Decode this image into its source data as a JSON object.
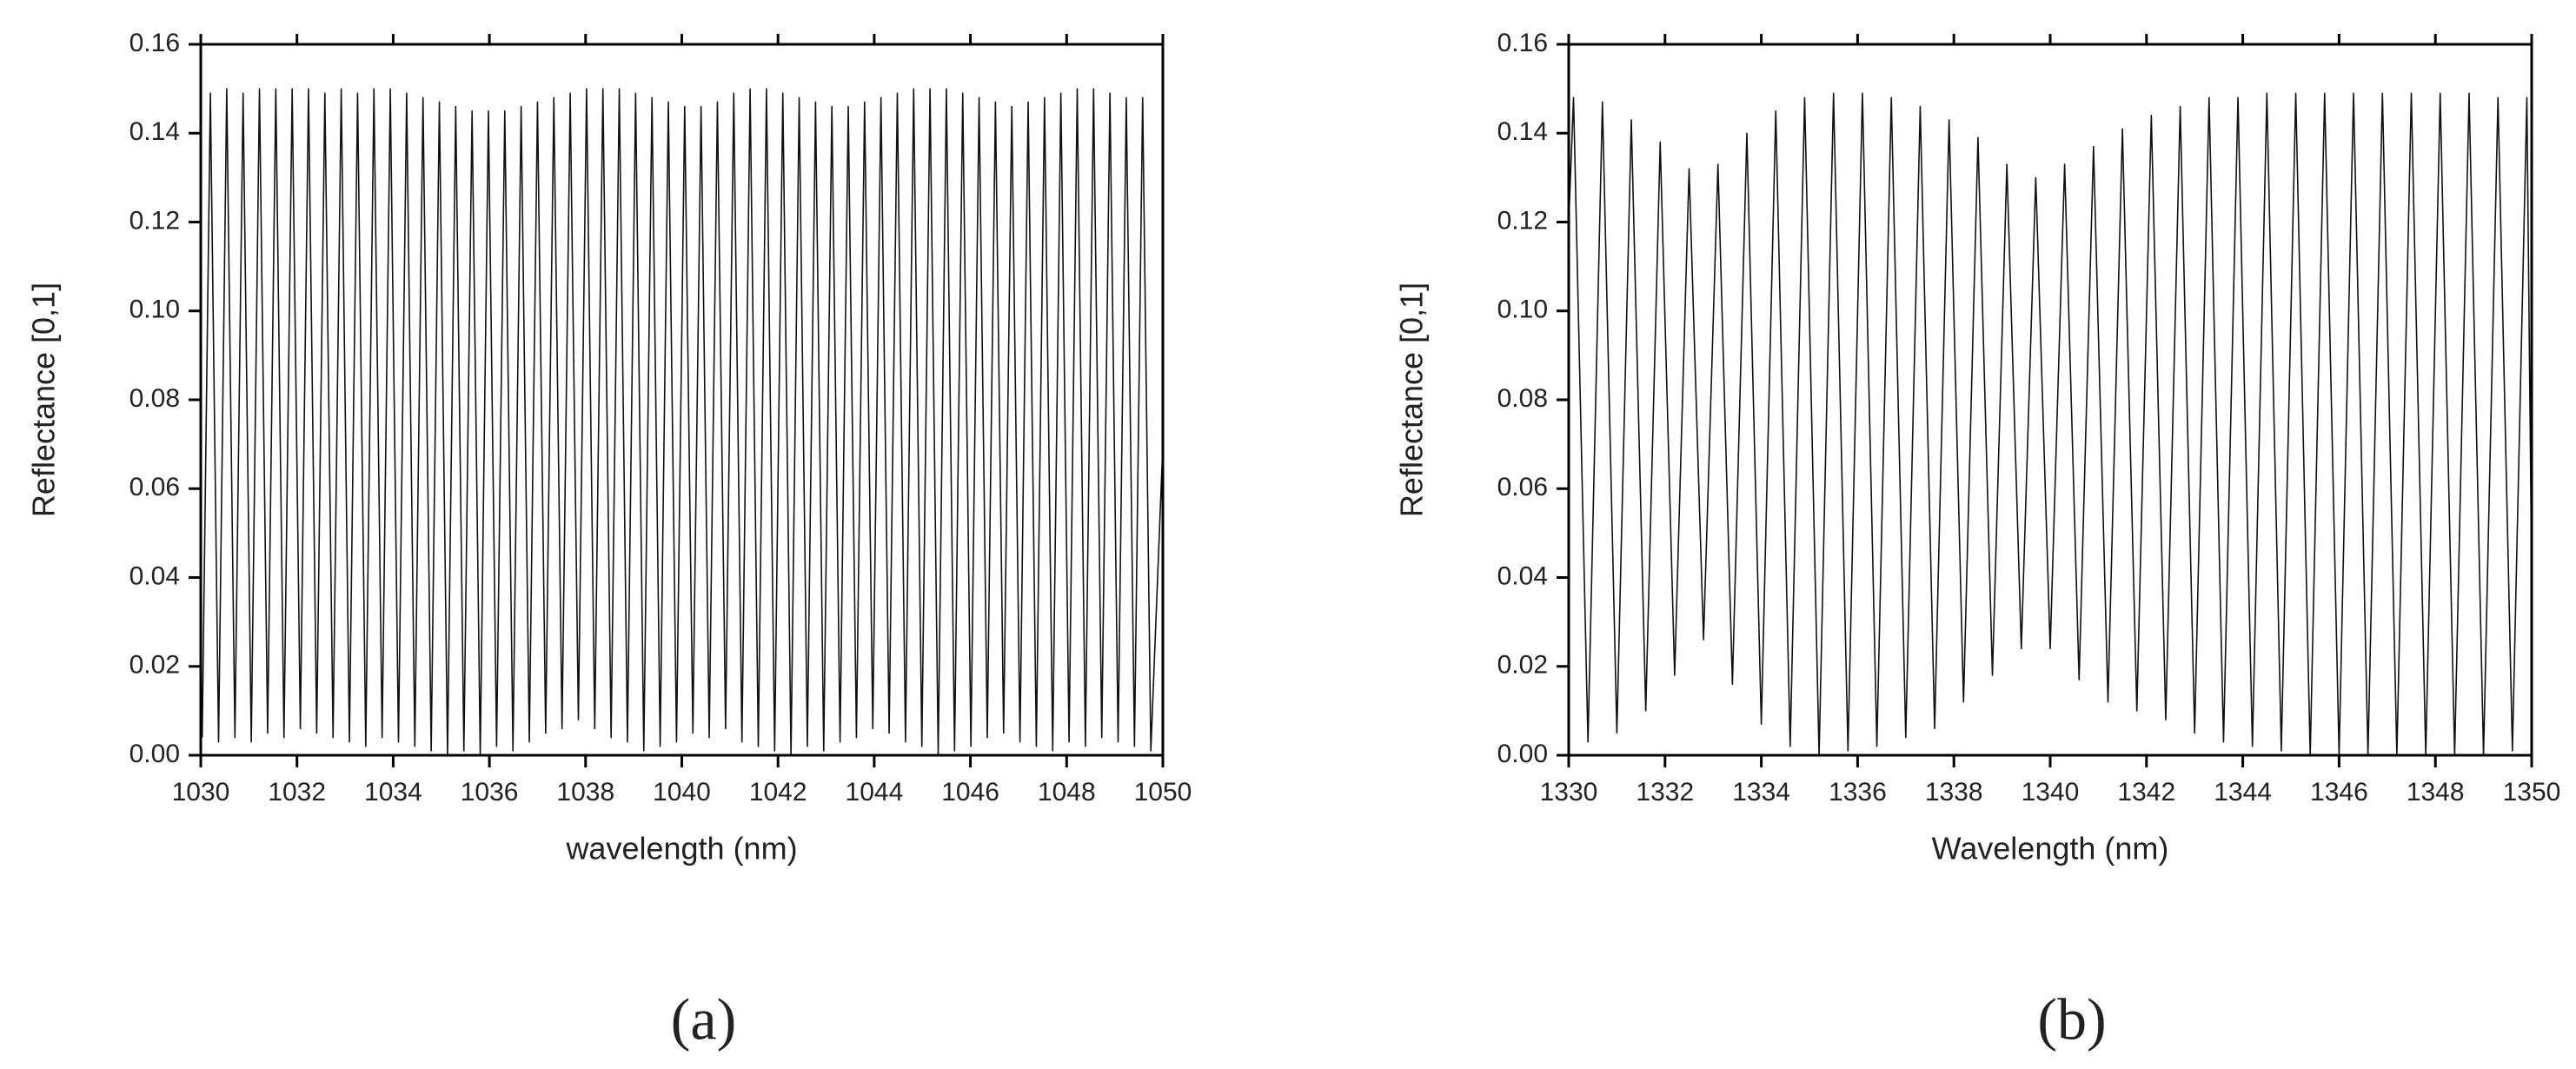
{
  "chart_data": [
    {
      "type": "line",
      "label": "(a)",
      "xlabel": "wavelength (nm)",
      "ylabel": "Reflectance [0,1]",
      "color": "#111111",
      "xlim": [
        1030,
        1050
      ],
      "xticks": [
        1030,
        1032,
        1034,
        1036,
        1038,
        1040,
        1042,
        1044,
        1046,
        1048,
        1050
      ],
      "ylim": [
        0,
        0.16
      ],
      "yticks": [
        {
          "value": 0,
          "label": "0.00"
        },
        0.02,
        0.04,
        0.06,
        0.08,
        {
          "value": 0.1,
          "label": "0.10"
        },
        0.12,
        0.14,
        0.16
      ],
      "x": [
        1030.03,
        1030.2,
        1030.37,
        1030.54,
        1030.71,
        1030.88,
        1031.05,
        1031.22,
        1031.39,
        1031.56,
        1031.73,
        1031.9,
        1032.07,
        1032.24,
        1032.41,
        1032.58,
        1032.75,
        1032.92,
        1033.09,
        1033.26,
        1033.43,
        1033.6,
        1033.77,
        1033.94,
        1034.11,
        1034.28,
        1034.45,
        1034.62,
        1034.79,
        1034.96,
        1035.13,
        1035.3,
        1035.47,
        1035.64,
        1035.81,
        1035.98,
        1036.15,
        1036.32,
        1036.49,
        1036.66,
        1036.83,
        1037,
        1037.17,
        1037.34,
        1037.51,
        1037.68,
        1037.85,
        1038.02,
        1038.19,
        1038.36,
        1038.53,
        1038.7,
        1038.87,
        1039.04,
        1039.21,
        1039.38,
        1039.55,
        1039.72,
        1039.89,
        1040.06,
        1040.23,
        1040.4,
        1040.57,
        1040.74,
        1040.91,
        1041.08,
        1041.25,
        1041.42,
        1041.59,
        1041.76,
        1041.93,
        1042.1,
        1042.27,
        1042.44,
        1042.61,
        1042.78,
        1042.95,
        1043.12,
        1043.29,
        1043.46,
        1043.63,
        1043.8,
        1043.97,
        1044.14,
        1044.31,
        1044.48,
        1044.65,
        1044.82,
        1044.99,
        1045.16,
        1045.33,
        1045.5,
        1045.67,
        1045.84,
        1046.01,
        1046.18,
        1046.35,
        1046.52,
        1046.69,
        1046.86,
        1047.03,
        1047.2,
        1047.37,
        1047.54,
        1047.71,
        1047.88,
        1048.05,
        1048.22,
        1048.39,
        1048.56,
        1048.73,
        1048.9,
        1049.07,
        1049.24,
        1049.41,
        1049.58,
        1049.75,
        1050
      ],
      "values": [
        0.004,
        0.149,
        0.003,
        0.15,
        0.004,
        0.149,
        0.003,
        0.15,
        0.005,
        0.15,
        0.004,
        0.15,
        0.006,
        0.15,
        0.005,
        0.149,
        0.004,
        0.15,
        0.003,
        0.149,
        0.002,
        0.15,
        0.004,
        0.15,
        0.003,
        0.149,
        0.002,
        0.148,
        0.001,
        0.147,
        0,
        0.146,
        0.001,
        0.145,
        0,
        0.145,
        0.002,
        0.145,
        0.001,
        0.146,
        0.003,
        0.147,
        0.005,
        0.148,
        0.006,
        0.149,
        0.008,
        0.15,
        0.006,
        0.15,
        0.004,
        0.15,
        0.003,
        0.149,
        0.001,
        0.148,
        0.002,
        0.147,
        0.003,
        0.146,
        0.005,
        0.146,
        0.004,
        0.147,
        0.006,
        0.149,
        0.003,
        0.15,
        0.002,
        0.15,
        0.001,
        0.149,
        0,
        0.148,
        0.002,
        0.147,
        0.001,
        0.146,
        0.003,
        0.146,
        0.004,
        0.147,
        0.006,
        0.148,
        0.005,
        0.149,
        0.003,
        0.15,
        0.002,
        0.15,
        0,
        0.15,
        0.001,
        0.149,
        0.002,
        0.148,
        0.004,
        0.147,
        0.005,
        0.146,
        0.003,
        0.147,
        0.002,
        0.148,
        0.001,
        0.149,
        0.003,
        0.15,
        0.002,
        0.15,
        0.004,
        0.149,
        0.003,
        0.148,
        0.002,
        0.148,
        0.001,
        0.07
      ]
    },
    {
      "type": "line",
      "label": "(b)",
      "xlabel": "Wavelength (nm)",
      "ylabel": "Reflectance [0,1]",
      "color": "#111111",
      "xlim": [
        1330,
        1350
      ],
      "xticks": [
        1330,
        1332,
        1334,
        1336,
        1338,
        1340,
        1342,
        1344,
        1346,
        1348,
        1350
      ],
      "ylim": [
        0,
        0.16
      ],
      "yticks": [
        {
          "value": 0,
          "label": "0.00"
        },
        0.02,
        0.04,
        0.06,
        0.08,
        {
          "value": 0.1,
          "label": "0.10"
        },
        0.12,
        0.14,
        0.16
      ],
      "x": [
        1330,
        1330.1,
        1330.4,
        1330.7,
        1331,
        1331.3,
        1331.6,
        1331.9,
        1332.2,
        1332.5,
        1332.8,
        1333.1,
        1333.4,
        1333.7,
        1334,
        1334.3,
        1334.6,
        1334.9,
        1335.2,
        1335.5,
        1335.8,
        1336.1,
        1336.4,
        1336.7,
        1337,
        1337.3,
        1337.6,
        1337.9,
        1338.2,
        1338.5,
        1338.8,
        1339.1,
        1339.4,
        1339.7,
        1340,
        1340.3,
        1340.6,
        1340.9,
        1341.2,
        1341.5,
        1341.8,
        1342.1,
        1342.4,
        1342.7,
        1343,
        1343.3,
        1343.6,
        1343.9,
        1344.2,
        1344.5,
        1344.8,
        1345.1,
        1345.4,
        1345.7,
        1346,
        1346.3,
        1346.6,
        1346.9,
        1347.2,
        1347.5,
        1347.8,
        1348.1,
        1348.4,
        1348.7,
        1349,
        1349.3,
        1349.6,
        1349.9,
        1350
      ],
      "values": [
        0.12,
        0.148,
        0.003,
        0.147,
        0.005,
        0.143,
        0.01,
        0.138,
        0.018,
        0.132,
        0.026,
        0.133,
        0.016,
        0.14,
        0.007,
        0.145,
        0.002,
        0.148,
        0,
        0.149,
        0.001,
        0.149,
        0.002,
        0.148,
        0.004,
        0.146,
        0.006,
        0.143,
        0.012,
        0.139,
        0.018,
        0.133,
        0.024,
        0.13,
        0.024,
        0.133,
        0.017,
        0.137,
        0.012,
        0.141,
        0.01,
        0.144,
        0.008,
        0.146,
        0.005,
        0.148,
        0.003,
        0.148,
        0.002,
        0.149,
        0.001,
        0.149,
        0,
        0.149,
        0,
        0.149,
        0,
        0.149,
        0,
        0.149,
        0,
        0.149,
        0,
        0.149,
        0,
        0.148,
        0.001,
        0.148,
        0.04
      ]
    }
  ]
}
